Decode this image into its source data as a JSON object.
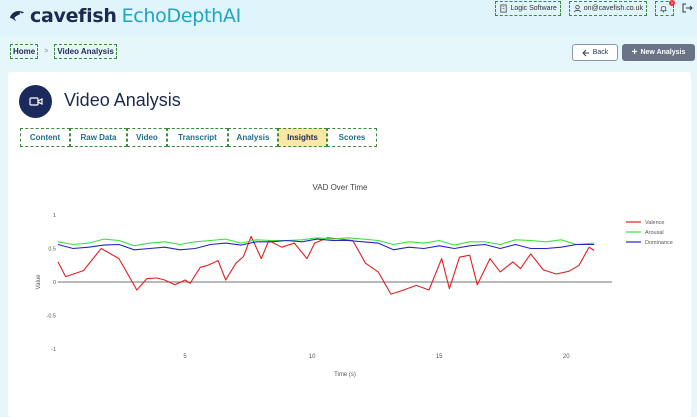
{
  "header": {
    "brand_main": "cavefish",
    "brand_product": "EchoDepthAI",
    "org": "Logic Software",
    "email": "on@cavefish.co.uk",
    "notification_count": "1"
  },
  "breadcrumb": {
    "home": "Home",
    "current": "Video Analysis",
    "separator": ">"
  },
  "actions": {
    "back": "Back",
    "new": "New Analysis"
  },
  "page": {
    "title": "Video Analysis"
  },
  "tabs": [
    {
      "label": "Content"
    },
    {
      "label": "Raw Data"
    },
    {
      "label": "Video"
    },
    {
      "label": "Transcript"
    },
    {
      "label": "Analysis"
    },
    {
      "label": "Insights",
      "active": true
    },
    {
      "label": "Scores"
    }
  ],
  "colors": {
    "valence": "#e02020",
    "arousal": "#3ee03e",
    "dominance": "#2424c8",
    "accent": "#1fa4c2",
    "brand": "#1b2a4e"
  },
  "chart_data": {
    "type": "line",
    "title": "VAD Over Time",
    "xlabel": "Time (s)",
    "ylabel": "Value",
    "xlim": [
      0,
      21.8
    ],
    "ylim": [
      -1,
      1
    ],
    "xticks": [
      5,
      10,
      15,
      20
    ],
    "yticks": [
      1,
      0.5,
      0,
      -0.5,
      -1
    ],
    "ytick_labels": [
      "1",
      "0.5",
      "0",
      "-0.5",
      "-1"
    ],
    "grid": false,
    "legend": "right",
    "series": [
      {
        "name": "Valence",
        "color": "#e02020",
        "x": [
          0,
          0.3,
          1,
          1.7,
          2.4,
          3.1,
          3.5,
          3.9,
          4.2,
          4.6,
          5,
          5.2,
          5.6,
          5.9,
          6.3,
          6.6,
          7,
          7.3,
          7.6,
          8,
          8.3,
          8.8,
          9.3,
          9.8,
          10.1,
          10.6,
          11.1,
          11.6,
          12.1,
          12.6,
          13.1,
          13.6,
          14.1,
          14.6,
          15.1,
          15.4,
          15.8,
          16.2,
          16.5,
          17,
          17.4,
          17.9,
          18.2,
          18.6,
          19.1,
          19.6,
          20.1,
          20.5,
          20.9,
          21.1
        ],
        "y": [
          0.3,
          0.08,
          0.17,
          0.5,
          0.35,
          -0.12,
          0.05,
          0.06,
          0.03,
          -0.04,
          0.03,
          -0.02,
          0.22,
          0.25,
          0.32,
          0.03,
          0.28,
          0.38,
          0.68,
          0.35,
          0.62,
          0.52,
          0.58,
          0.35,
          0.58,
          0.66,
          0.64,
          0.62,
          0.28,
          0.15,
          -0.18,
          -0.12,
          -0.05,
          -0.12,
          0.35,
          -0.1,
          0.37,
          0.4,
          -0.04,
          0.35,
          0.15,
          0.3,
          0.2,
          0.42,
          0.18,
          0.12,
          0.16,
          0.25,
          0.52,
          0.47
        ]
      },
      {
        "name": "Arousal",
        "color": "#3ee03e",
        "x": [
          0,
          0.6,
          1.2,
          1.8,
          2.4,
          3,
          3.6,
          4.2,
          4.8,
          5.4,
          6,
          6.6,
          7.2,
          7.8,
          8.4,
          9,
          9.6,
          10.2,
          10.8,
          11.4,
          12,
          12.6,
          13.2,
          13.8,
          14.4,
          15,
          15.6,
          16.2,
          16.8,
          17.4,
          18,
          18.6,
          19.2,
          19.8,
          20.4,
          21.1
        ],
        "y": [
          0.6,
          0.56,
          0.58,
          0.64,
          0.62,
          0.54,
          0.58,
          0.6,
          0.56,
          0.6,
          0.62,
          0.64,
          0.58,
          0.63,
          0.62,
          0.62,
          0.63,
          0.66,
          0.64,
          0.66,
          0.64,
          0.62,
          0.56,
          0.6,
          0.58,
          0.62,
          0.55,
          0.6,
          0.6,
          0.56,
          0.63,
          0.62,
          0.6,
          0.63,
          0.56,
          0.58
        ]
      },
      {
        "name": "Dominance",
        "color": "#2424c8",
        "x": [
          0,
          0.6,
          1.2,
          1.8,
          2.4,
          3,
          3.6,
          4.2,
          4.8,
          5.4,
          6,
          6.6,
          7.2,
          7.8,
          8.4,
          9,
          9.6,
          10.2,
          10.8,
          11.4,
          12,
          12.6,
          13.2,
          13.8,
          14.4,
          15,
          15.6,
          16.2,
          16.8,
          17.4,
          18,
          18.6,
          19.2,
          19.8,
          20.4,
          21.1
        ],
        "y": [
          0.56,
          0.5,
          0.52,
          0.55,
          0.56,
          0.48,
          0.5,
          0.52,
          0.48,
          0.5,
          0.56,
          0.58,
          0.55,
          0.6,
          0.6,
          0.62,
          0.6,
          0.64,
          0.62,
          0.62,
          0.6,
          0.58,
          0.48,
          0.52,
          0.5,
          0.54,
          0.5,
          0.54,
          0.56,
          0.5,
          0.56,
          0.5,
          0.5,
          0.52,
          0.56,
          0.56
        ]
      }
    ]
  }
}
